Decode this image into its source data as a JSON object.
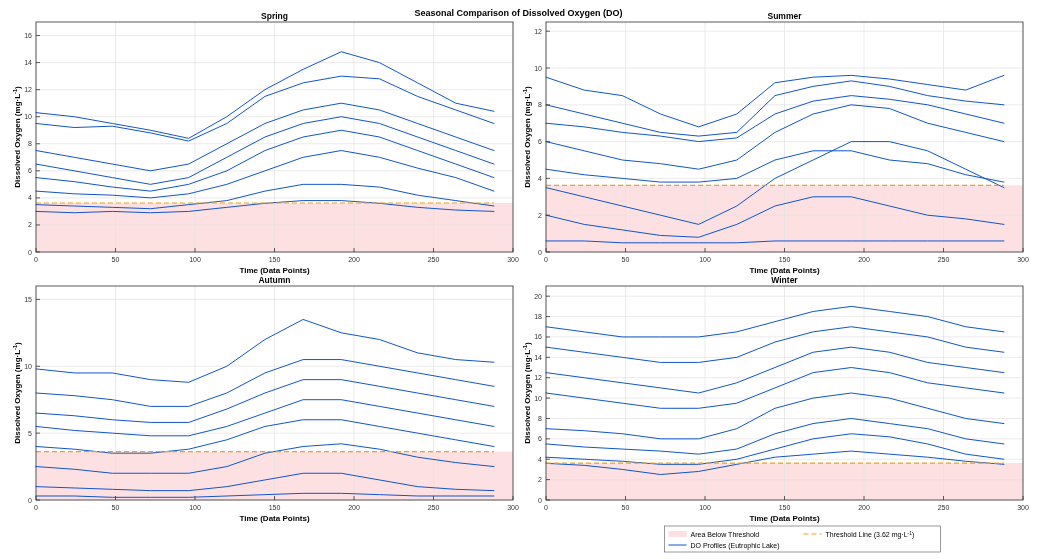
{
  "chart_data": [
    {
      "type": "line",
      "title": "Spring",
      "xlabel": "Time (Data Points)",
      "ylabel": "Dissolved Oxygen (mg·L$^{-1}$)",
      "annotations": [
        "Seasonal Comparison of Dissolved Oxygen (DO)"
      ],
      "x": [
        0,
        24,
        48,
        72,
        96,
        120,
        144,
        168,
        192,
        216,
        240,
        264,
        288
      ],
      "xlim": [
        0,
        300
      ],
      "xticks": [
        0,
        50,
        100,
        150,
        200,
        250,
        300
      ],
      "ylim": [
        0,
        17
      ],
      "yticks": [
        0,
        2,
        4,
        6,
        8,
        10,
        12,
        14,
        16
      ],
      "grid": true,
      "line_style": "solid",
      "marker": "none",
      "bands": [
        {
          "axis": "y",
          "from": 0,
          "to": 3.62,
          "color": "#fde0e2"
        }
      ],
      "ref_lines": [
        {
          "axis": "y",
          "value": 3.62,
          "color": "#f0a020",
          "line_style": "dashed"
        }
      ],
      "series": [
        {
          "color": "#1155cc",
          "values": [
            10.3,
            10,
            9.5,
            9,
            8.4,
            10,
            12,
            13.5,
            14.8,
            14,
            12.5,
            11,
            10.4
          ]
        },
        {
          "color": "#1155cc",
          "values": [
            9.5,
            9.2,
            9.3,
            8.8,
            8.2,
            9.5,
            11.5,
            12.5,
            13,
            12.8,
            11.5,
            10.5,
            9.5
          ]
        },
        {
          "color": "#1155cc",
          "values": [
            7.5,
            7,
            6.5,
            6,
            6.5,
            8,
            9.5,
            10.5,
            11,
            10.5,
            9.5,
            8.5,
            7.5
          ]
        },
        {
          "color": "#1155cc",
          "values": [
            6.5,
            6,
            5.5,
            5,
            5.5,
            7,
            8.5,
            9.5,
            10,
            9.5,
            8.5,
            7.5,
            6.5
          ]
        },
        {
          "color": "#1155cc",
          "values": [
            5.5,
            5.2,
            4.8,
            4.5,
            5,
            6,
            7.5,
            8.5,
            9,
            8.5,
            7.5,
            6.5,
            5.5
          ]
        },
        {
          "color": "#1155cc",
          "values": [
            4.5,
            4.3,
            4.2,
            4,
            4.3,
            5,
            6,
            7,
            7.5,
            7,
            6.2,
            5.5,
            4.5
          ]
        },
        {
          "color": "#1155cc",
          "values": [
            3.5,
            3.4,
            3.3,
            3.2,
            3.5,
            3.8,
            4.5,
            5,
            5,
            4.8,
            4.2,
            3.8,
            3.4
          ]
        },
        {
          "color": "#1155cc",
          "values": [
            3,
            2.9,
            3,
            2.9,
            3,
            3.3,
            3.6,
            3.8,
            3.8,
            3.6,
            3.3,
            3.1,
            3
          ]
        }
      ]
    },
    {
      "type": "line",
      "title": "Summer",
      "xlabel": "Time (Data Points)",
      "ylabel": "Dissolved Oxygen (mg·L$^{-1}$)",
      "x": [
        0,
        24,
        48,
        72,
        96,
        120,
        144,
        168,
        192,
        216,
        240,
        264,
        288
      ],
      "xlim": [
        0,
        300
      ],
      "xticks": [
        0,
        50,
        100,
        150,
        200,
        250,
        300
      ],
      "ylim": [
        0,
        12.5
      ],
      "yticks": [
        0,
        2,
        4,
        6,
        8,
        10,
        12
      ],
      "grid": true,
      "line_style": "solid",
      "marker": "none",
      "bands": [
        {
          "axis": "y",
          "from": 0,
          "to": 3.62,
          "color": "#fde0e2"
        }
      ],
      "ref_lines": [
        {
          "axis": "y",
          "value": 3.62,
          "color": "#f0a020",
          "line_style": "dashed"
        }
      ],
      "series": [
        {
          "color": "#1155cc",
          "values": [
            9.5,
            8.8,
            8.5,
            7.5,
            6.8,
            7.5,
            9.2,
            9.5,
            9.6,
            9.4,
            9.1,
            8.8,
            9.6
          ]
        },
        {
          "color": "#1155cc",
          "values": [
            8,
            7.5,
            7,
            6.5,
            6.3,
            6.5,
            8.5,
            9,
            9.3,
            9,
            8.5,
            8.2,
            8
          ]
        },
        {
          "color": "#1155cc",
          "values": [
            7,
            6.8,
            6.5,
            6.3,
            6,
            6.2,
            7.5,
            8.2,
            8.5,
            8.3,
            8,
            7.5,
            7
          ]
        },
        {
          "color": "#1155cc",
          "values": [
            6,
            5.5,
            5,
            4.8,
            4.5,
            5,
            6.5,
            7.5,
            8,
            7.8,
            7,
            6.5,
            6
          ]
        },
        {
          "color": "#1155cc",
          "values": [
            4.5,
            4.2,
            4,
            3.8,
            3.8,
            4,
            5,
            5.5,
            5.5,
            5,
            4.8,
            4.2,
            3.8
          ]
        },
        {
          "color": "#1155cc",
          "values": [
            3.5,
            3,
            2.5,
            2,
            1.5,
            2.5,
            4,
            5,
            6,
            6,
            5.5,
            4.5,
            3.5
          ]
        },
        {
          "color": "#1155cc",
          "values": [
            2,
            1.5,
            1.2,
            0.9,
            0.8,
            1.5,
            2.5,
            3,
            3,
            2.5,
            2,
            1.8,
            1.5
          ]
        },
        {
          "color": "#1155cc",
          "values": [
            0.6,
            0.6,
            0.5,
            0.5,
            0.5,
            0.5,
            0.6,
            0.6,
            0.6,
            0.6,
            0.6,
            0.6,
            0.6
          ]
        }
      ]
    },
    {
      "type": "line",
      "title": "Autumn",
      "xlabel": "Time (Data Points)",
      "ylabel": "Dissolved Oxygen (mg·L$^{-1}$)",
      "x": [
        0,
        24,
        48,
        72,
        96,
        120,
        144,
        168,
        192,
        216,
        240,
        264,
        288
      ],
      "xlim": [
        0,
        300
      ],
      "xticks": [
        0,
        50,
        100,
        150,
        200,
        250,
        300
      ],
      "ylim": [
        0,
        16
      ],
      "yticks": [
        0,
        5,
        10,
        15
      ],
      "grid": true,
      "line_style": "solid",
      "marker": "none",
      "bands": [
        {
          "axis": "y",
          "from": 0,
          "to": 3.62,
          "color": "#fde0e2"
        }
      ],
      "ref_lines": [
        {
          "axis": "y",
          "value": 3.62,
          "color": "#f0a020",
          "line_style": "dashed"
        }
      ],
      "series": [
        {
          "color": "#1155cc",
          "values": [
            9.8,
            9.5,
            9.5,
            9,
            8.8,
            10,
            12,
            13.5,
            12.5,
            12,
            11,
            10.5,
            10.3
          ]
        },
        {
          "color": "#1155cc",
          "values": [
            8,
            7.8,
            7.5,
            7,
            7,
            8,
            9.5,
            10.5,
            10.5,
            10,
            9.5,
            9,
            8.5
          ]
        },
        {
          "color": "#1155cc",
          "values": [
            6.5,
            6.3,
            6,
            5.8,
            5.8,
            6.8,
            8,
            9,
            9,
            8.5,
            8,
            7.5,
            7
          ]
        },
        {
          "color": "#1155cc",
          "values": [
            5.5,
            5.2,
            5,
            4.8,
            4.8,
            5.5,
            6.5,
            7.5,
            7.5,
            7,
            6.5,
            6,
            5.5
          ]
        },
        {
          "color": "#1155cc",
          "values": [
            4,
            3.8,
            3.5,
            3.5,
            3.8,
            4.5,
            5.5,
            6,
            6,
            5.5,
            5,
            4.5,
            4
          ]
        },
        {
          "color": "#1155cc",
          "values": [
            2.5,
            2.3,
            2,
            2,
            2,
            2.5,
            3.5,
            4,
            4.2,
            3.8,
            3.2,
            2.8,
            2.5
          ]
        },
        {
          "color": "#1155cc",
          "values": [
            1,
            0.9,
            0.8,
            0.7,
            0.7,
            1,
            1.5,
            2,
            2,
            1.5,
            1,
            0.8,
            0.7
          ]
        },
        {
          "color": "#1155cc",
          "values": [
            0.3,
            0.3,
            0.2,
            0.2,
            0.2,
            0.3,
            0.4,
            0.5,
            0.5,
            0.4,
            0.3,
            0.3,
            0.3
          ]
        }
      ]
    },
    {
      "type": "line",
      "title": "Winter",
      "xlabel": "Time (Data Points)",
      "ylabel": "Dissolved Oxygen (mg·L$^{-1}$)",
      "x": [
        0,
        24,
        48,
        72,
        96,
        120,
        144,
        168,
        192,
        216,
        240,
        264,
        288
      ],
      "xlim": [
        0,
        300
      ],
      "xticks": [
        0,
        50,
        100,
        150,
        200,
        250,
        300
      ],
      "ylim": [
        0,
        21
      ],
      "yticks": [
        0,
        2,
        4,
        6,
        8,
        10,
        12,
        14,
        16,
        18,
        20
      ],
      "grid": true,
      "line_style": "solid",
      "marker": "none",
      "legend": "bottom",
      "bands": [
        {
          "axis": "y",
          "from": 0,
          "to": 3.62,
          "label": "Area Below Threshold",
          "color": "#fde0e2"
        }
      ],
      "ref_lines": [
        {
          "axis": "y",
          "value": 3.62,
          "label": "Threshold Line (3.62 mg·L$^{-1}$)",
          "color": "#f0a020",
          "line_style": "dashed"
        }
      ],
      "series": [
        {
          "name": "DO Profiles (Eutrophic Lake)",
          "color": "#1155cc",
          "values": [
            17,
            16.5,
            16,
            16,
            16,
            16.5,
            17.5,
            18.5,
            19,
            18.5,
            18,
            17,
            16.5
          ]
        },
        {
          "color": "#1155cc",
          "values": [
            15,
            14.5,
            14,
            13.5,
            13.5,
            14,
            15.5,
            16.5,
            17,
            16.5,
            16,
            15,
            14.5
          ]
        },
        {
          "color": "#1155cc",
          "values": [
            12.5,
            12,
            11.5,
            11,
            10.5,
            11.5,
            13,
            14.5,
            15,
            14.5,
            13.5,
            13,
            12.5
          ]
        },
        {
          "color": "#1155cc",
          "values": [
            10.5,
            10,
            9.5,
            9,
            9,
            9.5,
            11,
            12.5,
            13,
            12.5,
            11.5,
            11,
            10.5
          ]
        },
        {
          "color": "#1155cc",
          "values": [
            7,
            6.8,
            6.5,
            6,
            6,
            7,
            9,
            10,
            10.5,
            10,
            9,
            8,
            7.5
          ]
        },
        {
          "color": "#1155cc",
          "values": [
            5.5,
            5.2,
            5,
            4.8,
            4.5,
            5,
            6.5,
            7.5,
            8,
            7.5,
            7,
            6,
            5.5
          ]
        },
        {
          "color": "#1155cc",
          "values": [
            4.2,
            4,
            3.8,
            3.5,
            3.5,
            4,
            5,
            6,
            6.5,
            6.2,
            5.5,
            4.5,
            4
          ]
        },
        {
          "color": "#1155cc",
          "values": [
            3.6,
            3.4,
            3,
            2.5,
            2.8,
            3.5,
            4.2,
            4.5,
            4.8,
            4.5,
            4.2,
            3.8,
            3.5
          ]
        }
      ]
    }
  ]
}
